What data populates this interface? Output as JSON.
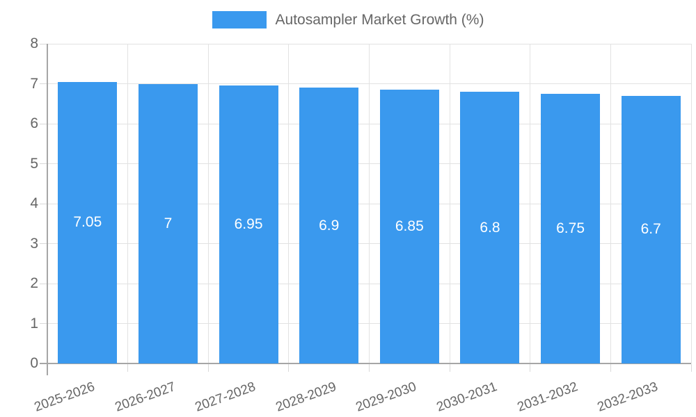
{
  "legend": {
    "label": "Autosampler Market Growth (%)"
  },
  "colors": {
    "bar": "#3A99EE",
    "grid": "#e2e2e2",
    "tick": "#d9d9d9",
    "axis": "#a6a6a6",
    "text": "#666666",
    "value_label": "#ffffff",
    "background": "#ffffff"
  },
  "chart_data": {
    "type": "bar",
    "title": "Autosampler Market Growth (%)",
    "categories": [
      "2025-2026",
      "2026-2027",
      "2027-2028",
      "2028-2029",
      "2029-2030",
      "2030-2031",
      "2031-2032",
      "2032-2033"
    ],
    "series": [
      {
        "name": "Autosampler Market Growth (%)",
        "values": [
          7.05,
          7,
          6.95,
          6.9,
          6.85,
          6.8,
          6.75,
          6.7
        ]
      }
    ],
    "value_labels": [
      "7.05",
      "7",
      "6.95",
      "6.9",
      "6.85",
      "6.8",
      "6.75",
      "6.7"
    ],
    "xlabel": "",
    "ylabel": "",
    "ylim": [
      0,
      8
    ],
    "y_ticks": [
      0,
      1,
      2,
      3,
      4,
      5,
      6,
      7,
      8
    ],
    "grid": true,
    "legend_position": "top",
    "x_label_rotation_deg": -20
  }
}
